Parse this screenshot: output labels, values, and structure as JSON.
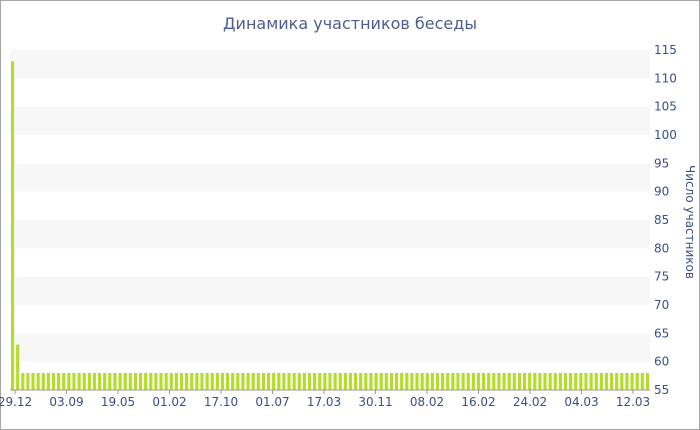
{
  "chart_data": {
    "type": "bar",
    "title": "Динамика участников беседы",
    "ylabel": "Число участников",
    "xlabel": "",
    "ylim": [
      55,
      115
    ],
    "yticks": [
      55,
      60,
      65,
      70,
      75,
      80,
      85,
      90,
      95,
      100,
      105,
      110,
      115
    ],
    "y_axis_side": "right",
    "grid": "alternating horizontal bands",
    "x_tick_labels": [
      "29.12",
      "03.09",
      "19.05",
      "01.02",
      "17.10",
      "01.07",
      "17.03",
      "30.11",
      "08.02",
      "16.02",
      "24.02",
      "04.03",
      "12.03"
    ],
    "values": [
      113,
      63,
      58,
      58,
      58,
      58,
      58,
      58,
      58,
      58,
      58,
      58,
      58,
      58,
      58,
      58,
      58,
      58,
      58,
      58,
      58,
      58,
      58,
      58,
      58,
      58,
      58,
      58,
      58,
      58,
      58,
      58,
      58,
      58,
      58,
      58,
      58,
      58,
      58,
      58,
      58,
      58,
      58,
      58,
      58,
      58,
      58,
      58,
      58,
      58,
      58,
      58,
      58,
      58,
      58,
      58,
      58,
      58,
      58,
      58,
      58,
      58,
      58,
      58,
      58,
      58,
      58,
      58,
      58,
      58,
      58,
      58,
      58,
      58,
      58,
      58,
      58,
      58,
      58,
      58,
      58,
      58,
      58,
      58,
      58,
      58,
      58,
      58,
      58,
      58,
      58,
      58,
      58,
      58,
      58,
      58,
      58,
      58,
      58,
      58,
      58,
      58,
      58,
      58,
      58,
      58,
      58,
      58,
      58,
      58,
      58,
      58,
      58,
      58,
      58,
      58,
      58,
      58,
      58,
      58,
      58,
      58,
      58,
      58,
      58
    ],
    "colors": {
      "bar": "#b5dc2a",
      "band": "#f7f7f7",
      "text": "#3a4f8a",
      "title": "#4d5d91",
      "frame": "#a6a6a6"
    }
  }
}
